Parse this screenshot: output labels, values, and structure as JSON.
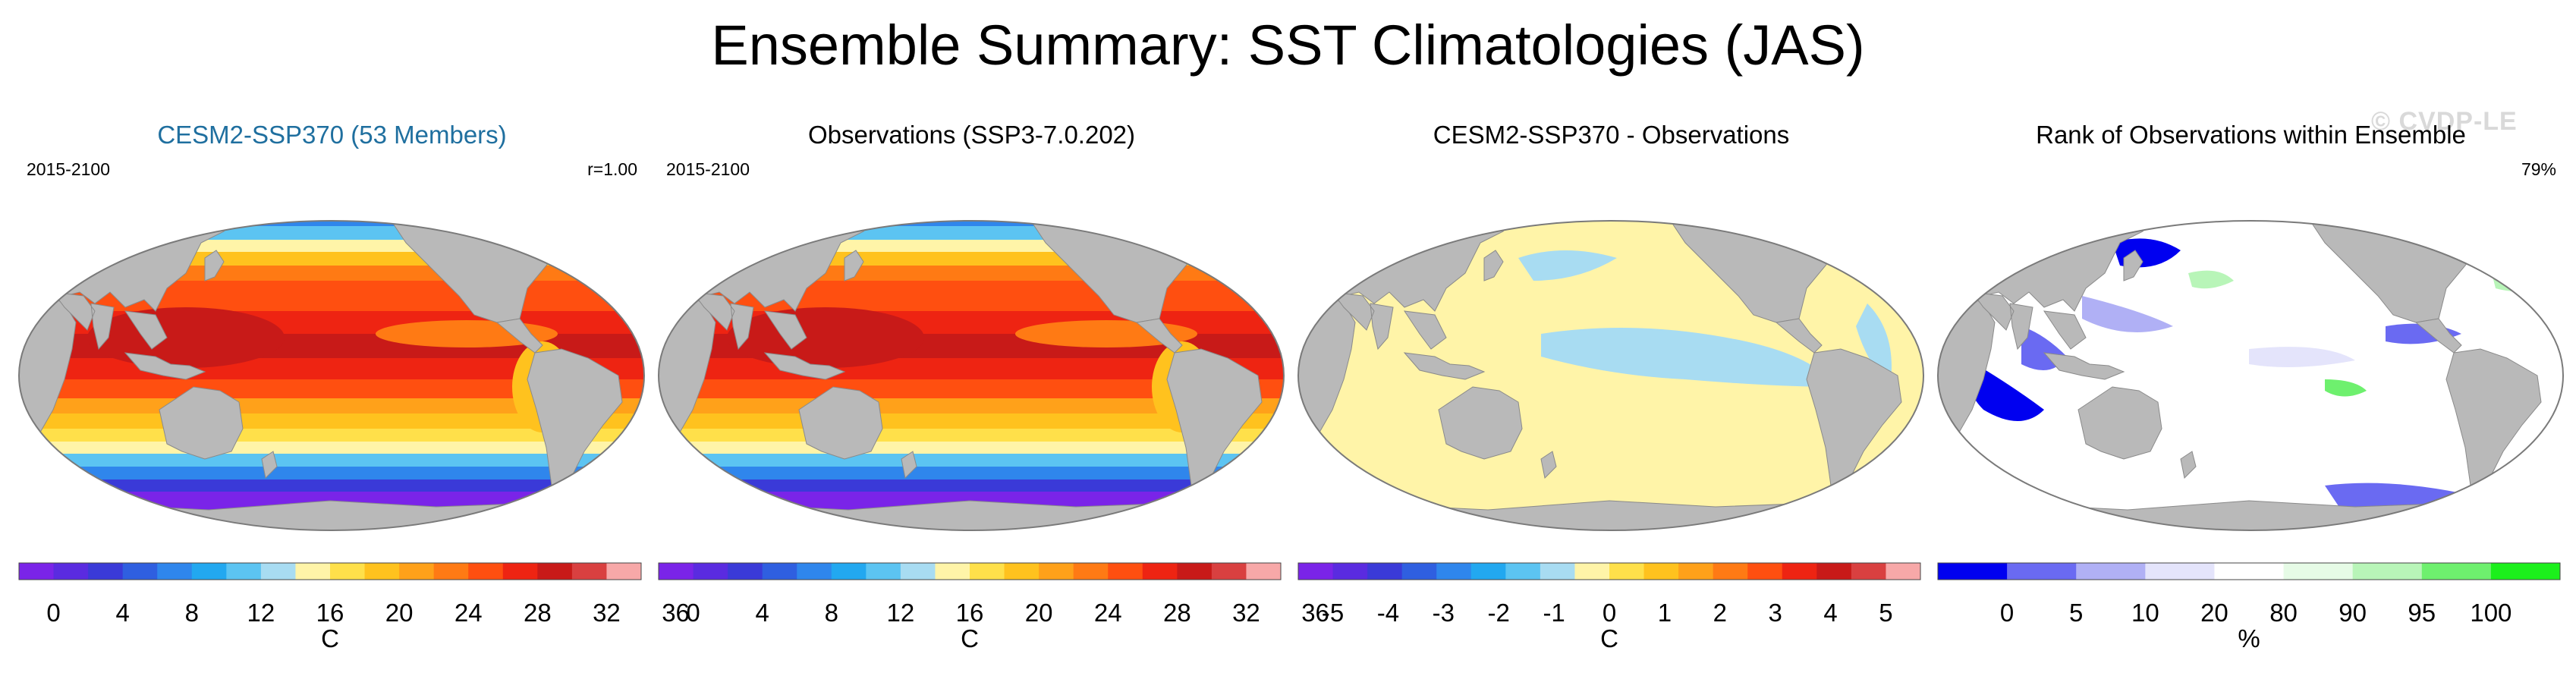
{
  "title": "Ensemble Summary: SST Climatologies (JAS)",
  "watermark": "© CVDP-LE",
  "colors": {
    "land": "#b9b9b9",
    "coast": "#8a8a8a",
    "title_teal": "#1f6f9f",
    "sst_scale": [
      "#7a24e8",
      "#5a2be0",
      "#3a3ad8",
      "#2f5fe0",
      "#2f86ec",
      "#22a8f0",
      "#5cc4f2",
      "#a8dcf2",
      "#fff4a8",
      "#ffe04a",
      "#ffc21e",
      "#ffa11a",
      "#ff7a14",
      "#ff4f10",
      "#ee2412",
      "#c81a18",
      "#d94040",
      "#f7a8a8"
    ],
    "diff_scale": [
      "#7a24e8",
      "#5a2be0",
      "#3a3ad8",
      "#2f5fe0",
      "#2f86ec",
      "#22a8f0",
      "#5cc4f2",
      "#a8dcf2",
      "#fff4a8",
      "#ffe04a",
      "#ffc21e",
      "#ffa11a",
      "#ff7a14",
      "#ff4f10",
      "#ee2412",
      "#c81a18",
      "#d94040",
      "#f7a8a8"
    ],
    "rank_scale": [
      "#0000f0",
      "#6a6af2",
      "#b0b0f5",
      "#e4e4fb",
      "#ffffff",
      "#e6fbe6",
      "#b8f5b8",
      "#6ef06e",
      "#1cf01c"
    ]
  },
  "panels": [
    {
      "id": "model",
      "title": "CESM2-SSP370 (53 Members)",
      "left_label": "2015-2100",
      "right_label": "r=1.00",
      "map_kind": "sst",
      "colorbar": {
        "ticks": [
          "0",
          "4",
          "8",
          "12",
          "16",
          "20",
          "24",
          "28",
          "32",
          "36"
        ],
        "unit": "C"
      }
    },
    {
      "id": "observations",
      "title": "Observations (SSP3-7.0.202)",
      "left_label": "2015-2100",
      "right_label": "",
      "map_kind": "sst",
      "colorbar": {
        "ticks": [
          "0",
          "4",
          "8",
          "12",
          "16",
          "20",
          "24",
          "28",
          "32",
          "36"
        ],
        "unit": "C"
      }
    },
    {
      "id": "difference",
      "title": "CESM2-SSP370 - Observations",
      "left_label": "",
      "right_label": "",
      "map_kind": "diff",
      "colorbar": {
        "ticks": [
          "-5",
          "-4",
          "-3",
          "-2",
          "-1",
          "0",
          "1",
          "2",
          "3",
          "4",
          "5"
        ],
        "unit": "C"
      }
    },
    {
      "id": "rank",
      "title": "Rank of Observations within Ensemble",
      "left_label": "",
      "right_label": "79%",
      "map_kind": "rank",
      "colorbar": {
        "ticks": [
          "0",
          "5",
          "10",
          "20",
          "80",
          "90",
          "95",
          "100"
        ],
        "unit": "%"
      }
    }
  ]
}
